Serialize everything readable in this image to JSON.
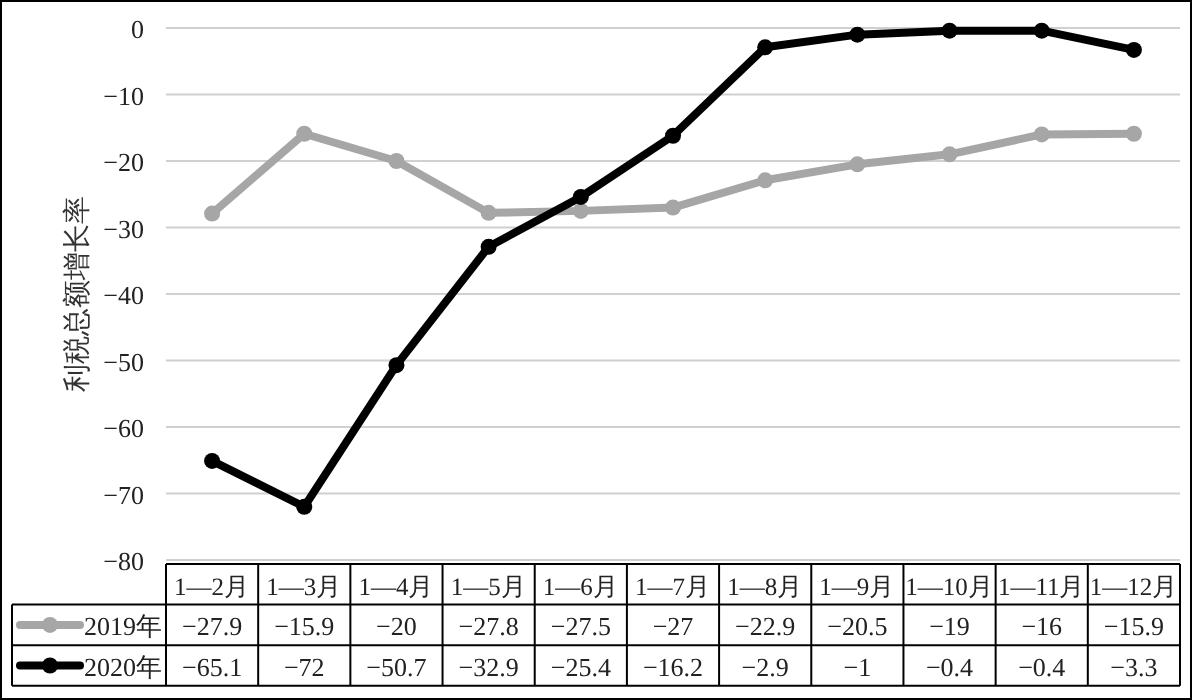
{
  "chart_data": {
    "type": "line",
    "ylabel": "利税总额增长率",
    "categories": [
      "1—2月",
      "1—3月",
      "1—4月",
      "1—5月",
      "1—6月",
      "1—7月",
      "1—8月",
      "1—9月",
      "1—10月",
      "1—11月",
      "1—12月"
    ],
    "series": [
      {
        "name": "2019年",
        "color": "#a6a6a6",
        "values": [
          -27.9,
          -15.9,
          -20,
          -27.8,
          -27.5,
          -27,
          -22.9,
          -20.5,
          -19,
          -16,
          -15.9
        ],
        "value_labels": [
          "−27.9",
          "−15.9",
          "−20",
          "−27.8",
          "−27.5",
          "−27",
          "−22.9",
          "−20.5",
          "−19",
          "−16",
          "−15.9"
        ]
      },
      {
        "name": "2020年",
        "color": "#000000",
        "values": [
          -65.1,
          -72,
          -50.7,
          -32.9,
          -25.4,
          -16.2,
          -2.9,
          -1,
          -0.4,
          -0.4,
          -3.3
        ],
        "value_labels": [
          "−65.1",
          "−72",
          "−50.7",
          "−32.9",
          "−25.4",
          "−16.2",
          "−2.9",
          "−1",
          "−0.4",
          "−0.4",
          "−3.3"
        ]
      }
    ],
    "ylim": [
      -80,
      0
    ],
    "yticks": [
      0,
      {
        "value": -10,
        "label": "−10"
      },
      {
        "value": -20,
        "label": "−20"
      },
      {
        "value": -30,
        "label": "−30"
      },
      {
        "value": -40,
        "label": "−40"
      },
      {
        "value": -50,
        "label": "−50"
      },
      {
        "value": -60,
        "label": "−60"
      },
      {
        "value": -70,
        "label": "−70"
      },
      {
        "value": -80,
        "label": "−80"
      }
    ],
    "grid": "y",
    "marker": "circle",
    "line_style": "solid",
    "legend": "bottom"
  }
}
